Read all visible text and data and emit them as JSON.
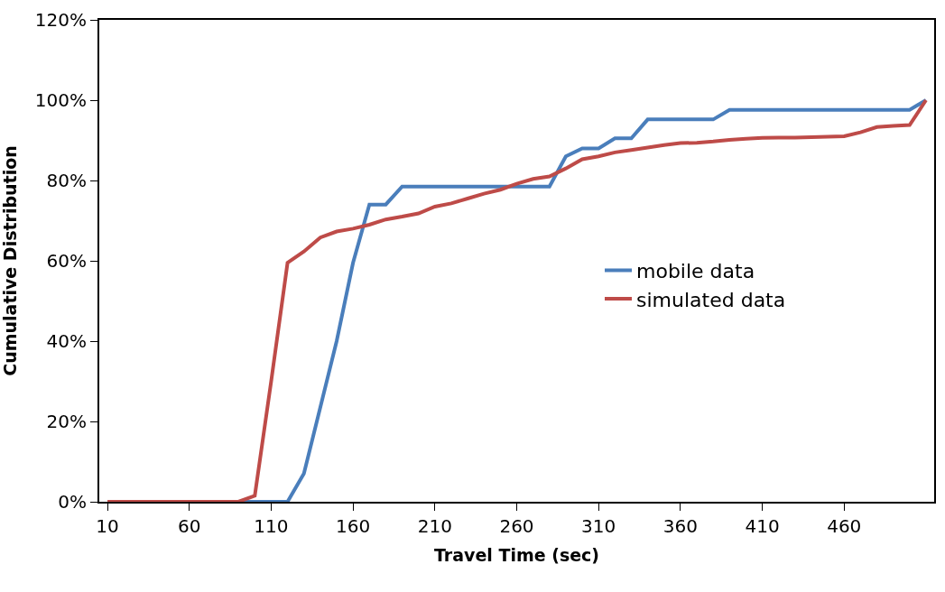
{
  "chart_data": {
    "type": "line",
    "xlabel": "Travel Time (sec)",
    "ylabel": "Cumulative Distribution",
    "x": [
      10,
      20,
      30,
      40,
      50,
      60,
      70,
      80,
      90,
      100,
      110,
      120,
      130,
      140,
      150,
      160,
      170,
      180,
      190,
      200,
      210,
      220,
      230,
      240,
      250,
      260,
      270,
      280,
      290,
      300,
      310,
      320,
      330,
      340,
      350,
      360,
      370,
      380,
      390,
      400,
      410,
      420,
      430,
      440,
      450,
      460,
      470,
      480,
      490,
      500,
      510
    ],
    "series": [
      {
        "name": "mobile data",
        "color": "#4a7ebb",
        "values": [
          null,
          null,
          null,
          null,
          null,
          null,
          null,
          0,
          0,
          0,
          0,
          0,
          7,
          23.5,
          40,
          59.5,
          74,
          74,
          78.5,
          78.5,
          78.5,
          78.5,
          78.5,
          78.5,
          78.5,
          78.5,
          78.5,
          78.5,
          86,
          88,
          88,
          90.5,
          90.5,
          95.2,
          95.2,
          95.2,
          95.2,
          95.2,
          97.6,
          97.6,
          97.6,
          97.6,
          97.6,
          97.6,
          97.6,
          97.6,
          97.6,
          97.6,
          97.6,
          97.6,
          100
        ]
      },
      {
        "name": "simulated data",
        "color": "#be4b48",
        "values": [
          0,
          0,
          0,
          0,
          0,
          0,
          0,
          0,
          0,
          1.5,
          30,
          59.5,
          62.3,
          65.8,
          67.3,
          68,
          69,
          70.3,
          71,
          71.8,
          73.5,
          74.3,
          75.5,
          76.7,
          77.7,
          79.2,
          80.4,
          81,
          83,
          85.3,
          86,
          87,
          87.6,
          88.2,
          88.8,
          89.3,
          89.4,
          89.7,
          90.1,
          90.4,
          90.6,
          90.7,
          90.7,
          90.8,
          90.9,
          91,
          92,
          93.3,
          93.6,
          93.8,
          100
        ]
      }
    ],
    "xlim": [
      5,
      515
    ],
    "xticks": [
      10,
      60,
      110,
      160,
      210,
      260,
      310,
      360,
      410,
      460
    ],
    "ylim": [
      0,
      120
    ],
    "yticks": [
      {
        "value": 0,
        "label": "0%"
      },
      {
        "value": 20,
        "label": "20%"
      },
      {
        "value": 40,
        "label": "40%"
      },
      {
        "value": 60,
        "label": "60%"
      },
      {
        "value": 80,
        "label": "80%"
      },
      {
        "value": 100,
        "label": "100%"
      },
      {
        "value": 120,
        "label": "120%"
      }
    ],
    "legend": "right",
    "marker": "none",
    "line_style": "solid"
  }
}
